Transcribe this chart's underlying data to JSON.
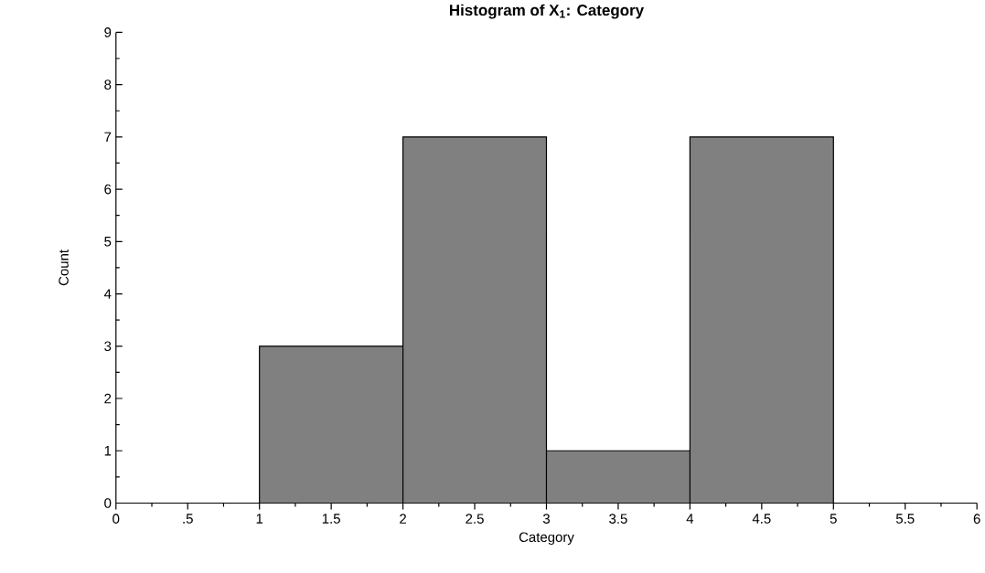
{
  "chart_data": {
    "type": "histogram",
    "title": "Histogram of X$_{1}$: Category",
    "xlabel": "Category",
    "ylabel": "Count",
    "bins": [
      1,
      2,
      3,
      4,
      5
    ],
    "values": [
      3,
      7,
      1,
      7
    ],
    "color": "#808080",
    "xlim": [
      0,
      6
    ],
    "xticks": [
      0,
      {
        "value": 0.5,
        "label": ".5"
      },
      1,
      1.5,
      2,
      2.5,
      3,
      3.5,
      4,
      4.5,
      5,
      5.5,
      6
    ],
    "ylim": [
      0,
      9
    ],
    "yticks": [
      0,
      1,
      2,
      3,
      4,
      5,
      6,
      7,
      8,
      9
    ],
    "grid": false,
    "legend": false
  }
}
